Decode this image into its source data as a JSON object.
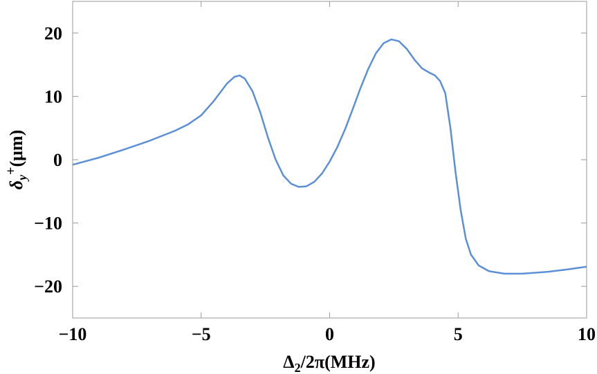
{
  "chart_data": {
    "type": "line",
    "x_label": [
      "Δ",
      "2",
      "/2π(MHz)"
    ],
    "y_label": [
      "δ",
      "y",
      "+",
      "(μm)"
    ],
    "xlim": [
      -10,
      10
    ],
    "ylim": [
      -25,
      25
    ],
    "xticks": [
      {
        "value": -10,
        "label": "−10"
      },
      {
        "value": -5,
        "label": "−5"
      },
      0,
      5,
      10
    ],
    "yticks": [
      {
        "value": -20,
        "label": "−20"
      },
      {
        "value": -10,
        "label": "−10"
      },
      0,
      10,
      20
    ],
    "grid": false,
    "series": [
      {
        "color": "#5b8fd6",
        "x": [
          -10,
          -9,
          -8,
          -7,
          -6,
          -5.5,
          -5,
          -4.5,
          -4,
          -3.7,
          -3.5,
          -3.3,
          -3,
          -2.7,
          -2.4,
          -2.1,
          -1.8,
          -1.5,
          -1.2,
          -0.9,
          -0.6,
          -0.3,
          0,
          0.3,
          0.6,
          0.9,
          1.2,
          1.5,
          1.8,
          2.1,
          2.4,
          2.7,
          3.0,
          3.3,
          3.6,
          3.9,
          4.1,
          4.3,
          4.5,
          4.7,
          4.9,
          5.1,
          5.3,
          5.5,
          5.8,
          6.2,
          6.8,
          7.5,
          8.5,
          9.3,
          10
        ],
        "values": [
          -0.8,
          0.3,
          1.6,
          3.0,
          4.6,
          5.6,
          7.0,
          9.3,
          12.0,
          13.1,
          13.3,
          12.8,
          10.8,
          7.5,
          3.5,
          0.0,
          -2.5,
          -3.8,
          -4.3,
          -4.2,
          -3.5,
          -2.2,
          -0.3,
          2.0,
          4.8,
          8.0,
          11.3,
          14.3,
          16.8,
          18.4,
          19.0,
          18.7,
          17.5,
          15.8,
          14.4,
          13.7,
          13.3,
          12.4,
          10.5,
          5.0,
          -2.0,
          -8.0,
          -12.5,
          -15.0,
          -16.7,
          -17.6,
          -18.0,
          -18.0,
          -17.7,
          -17.3,
          -16.9
        ]
      }
    ]
  }
}
